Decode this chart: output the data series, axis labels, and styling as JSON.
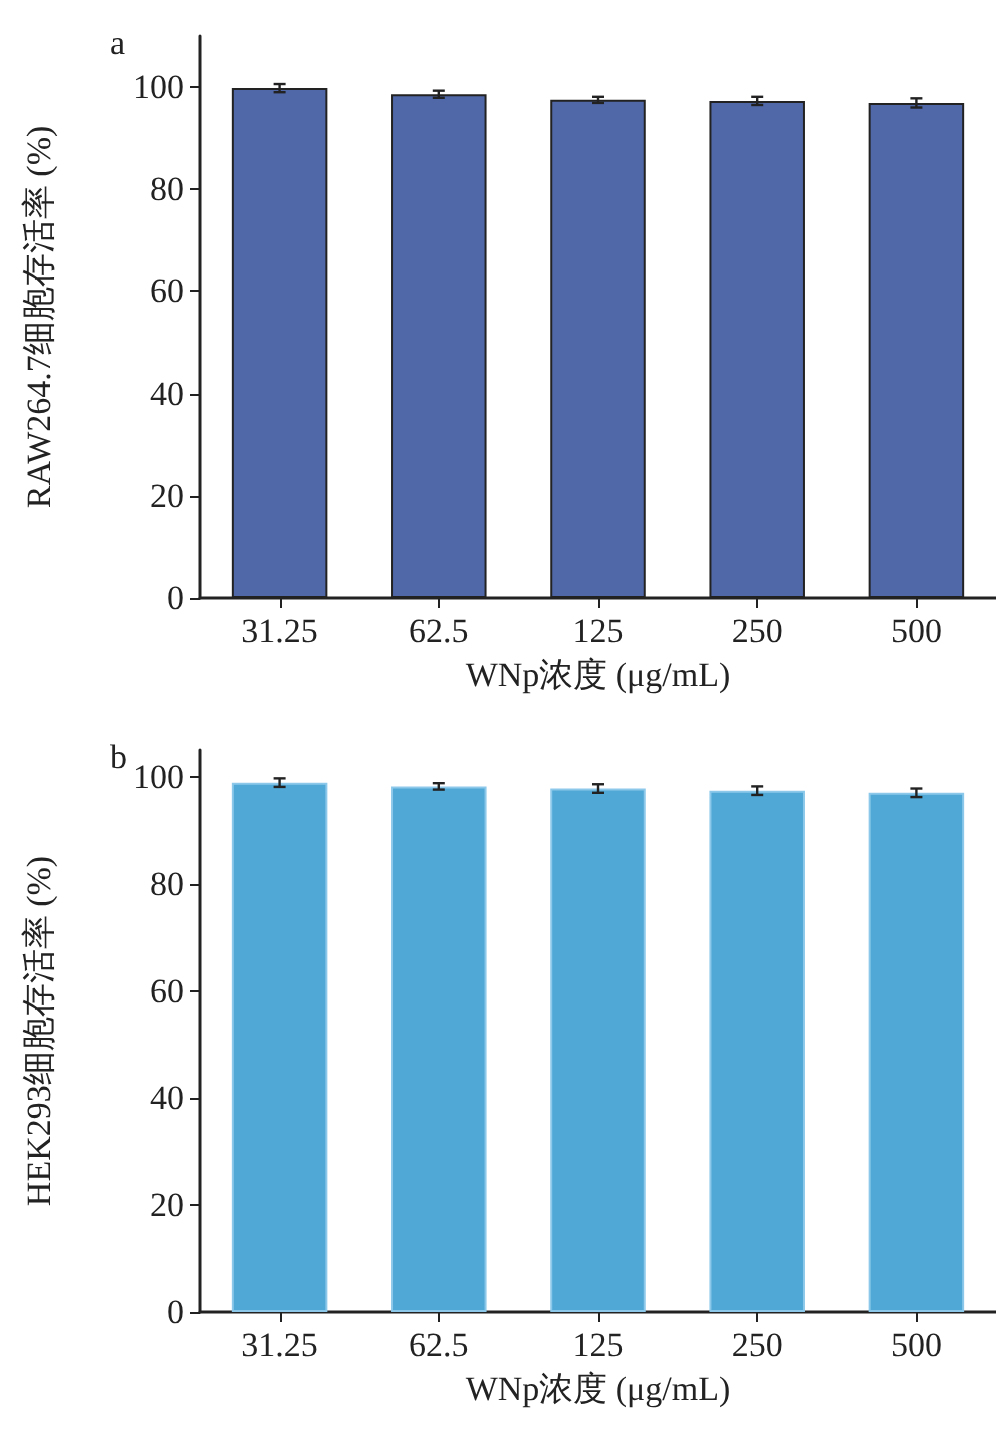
{
  "chart_data": [
    {
      "type": "bar",
      "title": "a",
      "xlabel": "WNp浓度 (μg/mL)",
      "ylabel": "RAW264.7细胞存活率 (%)",
      "categories": [
        "31.25",
        "62.5",
        "125",
        "250",
        "500"
      ],
      "values": [
        99.8,
        98.6,
        97.5,
        97.3,
        96.9
      ],
      "errors": [
        0.8,
        0.7,
        0.6,
        0.8,
        0.9
      ],
      "color": "#5068a8",
      "ylim": [
        0,
        110
      ],
      "yticks": [
        0,
        20,
        40,
        60,
        80,
        100
      ]
    },
    {
      "type": "bar",
      "title": "b",
      "xlabel": "WNp浓度 (μg/mL)",
      "ylabel": "HEK293细胞存活率 (%)",
      "categories": [
        "31.25",
        "62.5",
        "125",
        "250",
        "500"
      ],
      "values": [
        98.9,
        98.2,
        97.8,
        97.4,
        97.0
      ],
      "errors": [
        0.8,
        0.6,
        0.8,
        0.8,
        0.8
      ],
      "color": "#50a8d6",
      "ylim": [
        0,
        105
      ],
      "yticks": [
        0,
        20,
        40,
        60,
        80,
        100
      ]
    }
  ]
}
